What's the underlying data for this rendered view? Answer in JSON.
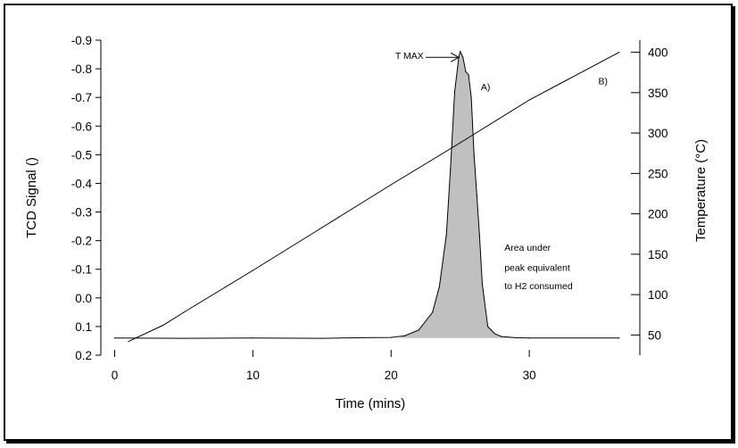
{
  "chart_data": {
    "type": "line",
    "title": "",
    "xlabel": "Time (mins)",
    "ylabel": "TCD Signal ()",
    "y2label": "Temperature (°C)",
    "xlim": [
      -1,
      38
    ],
    "ylim": [
      0.2,
      -0.9
    ],
    "y2lim": [
      25,
      415
    ],
    "xticks": [
      0,
      10,
      20,
      30
    ],
    "xtick_labels": [
      "0",
      "10",
      "20",
      "30"
    ],
    "yticks": [
      0.2,
      0.1,
      0.0,
      -0.1,
      -0.2,
      -0.3,
      -0.4,
      -0.5,
      -0.6,
      -0.7,
      -0.8,
      -0.9
    ],
    "ytick_labels": [
      "0.2",
      "0.1",
      "0.0",
      "-0.1",
      "-0.2",
      "-0.3",
      "-0.4",
      "-0.5",
      "-0.6",
      "-0.7",
      "-0.8",
      "-0.9"
    ],
    "y2ticks": [
      50,
      100,
      150,
      200,
      250,
      300,
      350,
      400
    ],
    "y2tick_labels": [
      "50",
      "100",
      "150",
      "200",
      "250",
      "300",
      "350",
      "400"
    ],
    "grid": false,
    "series": [
      {
        "name": "A)",
        "axis": "left",
        "shaded": true,
        "fill_color": "#c0c0c0",
        "x": [
          0,
          5,
          10,
          15,
          18,
          20,
          21,
          22,
          23,
          23.5,
          24,
          24.3,
          24.6,
          24.9,
          25.0,
          25.2,
          25.4,
          25.6,
          25.8,
          26.0,
          26.2,
          26.4,
          26.6,
          27.0,
          27.5,
          28.0,
          29.0,
          30.0,
          36.5
        ],
        "y": [
          0.14,
          0.141,
          0.14,
          0.141,
          0.139,
          0.138,
          0.132,
          0.112,
          0.05,
          -0.04,
          -0.22,
          -0.45,
          -0.72,
          -0.84,
          -0.86,
          -0.84,
          -0.79,
          -0.78,
          -0.7,
          -0.5,
          -0.36,
          -0.22,
          -0.05,
          0.1,
          0.125,
          0.135,
          0.139,
          0.14,
          0.14
        ]
      },
      {
        "name": "B)",
        "axis": "right",
        "x": [
          1,
          3.5,
          5,
          10,
          15,
          20,
          25,
          30,
          36.5
        ],
        "y": [
          42,
          62,
          78,
          130,
          183,
          236,
          288,
          341,
          400
        ]
      }
    ],
    "annotations": [
      {
        "text": "T MAX",
        "x": 20.3,
        "y": -0.835
      },
      {
        "text": "A)",
        "x": 26.5,
        "y": -0.725
      },
      {
        "text": "B)",
        "x": 35.0,
        "y": -0.745
      },
      {
        "text": "Area under",
        "x": 28.2,
        "y": -0.165
      },
      {
        "text": "peak equivalent",
        "x": 28.2,
        "y": -0.095
      },
      {
        "text": "to H2 consumed",
        "x": 28.2,
        "y": -0.03
      }
    ]
  }
}
